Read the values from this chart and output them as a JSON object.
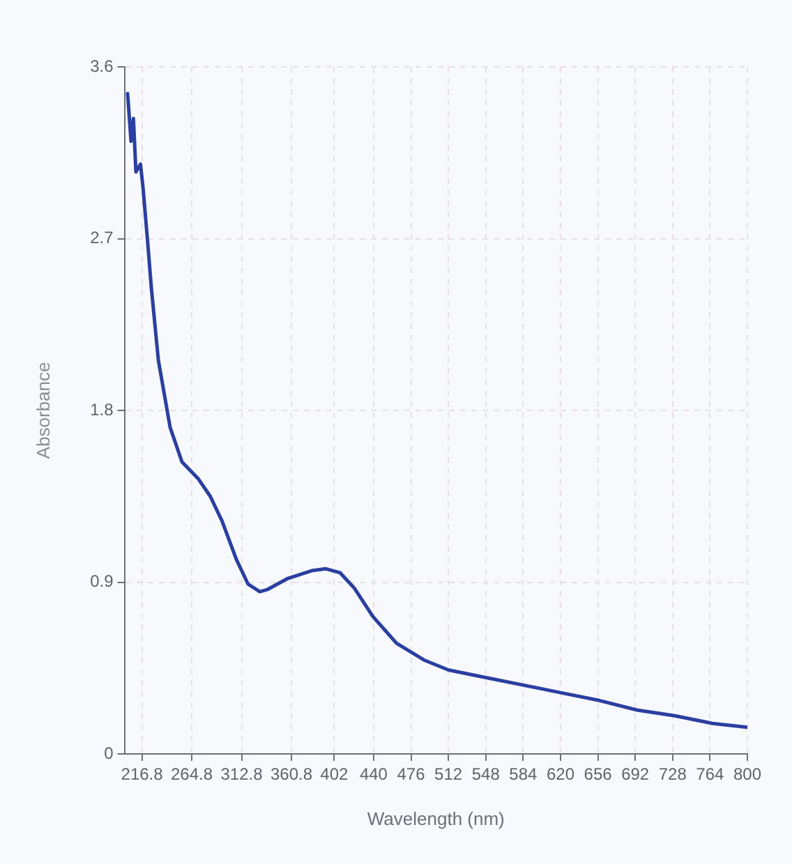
{
  "chart_data": {
    "type": "line",
    "xlabel": "Wavelength (nm)",
    "ylabel": "Absorbance",
    "x": [
      203,
      206.3,
      208.6,
      211,
      215.4,
      217.8,
      222.2,
      225.9,
      232.7,
      244,
      255.4,
      271.3,
      282.6,
      294,
      307.7,
      319,
      330.3,
      337.1,
      357.5,
      380.3,
      394,
      407.5,
      421.2,
      439.3,
      462,
      489.3,
      512,
      548.3,
      584.6,
      621,
      657.3,
      693.6,
      730,
      766.3,
      800
    ],
    "series": [
      {
        "color": "#2b3fa0",
        "values": [
          3.46,
          3.21,
          3.33,
          3.05,
          3.09,
          2.97,
          2.69,
          2.44,
          2.06,
          1.71,
          1.53,
          1.44,
          1.35,
          1.22,
          1.02,
          0.89,
          0.85,
          0.86,
          0.92,
          0.96,
          0.97,
          0.95,
          0.87,
          0.72,
          0.58,
          0.49,
          0.44,
          0.4,
          0.36,
          0.32,
          0.28,
          0.23,
          0.2,
          0.16,
          0.14
        ]
      }
    ],
    "xlim": [
      200,
      800
    ],
    "xticks": [
      216.8,
      264.8,
      312.8,
      360.8,
      402,
      440,
      476,
      512,
      548,
      584,
      620,
      656,
      692,
      728,
      764,
      800
    ],
    "ylim": [
      0,
      3.6
    ],
    "yticks": [
      0,
      0.9,
      1.8,
      2.7,
      3.6
    ],
    "grid": true,
    "legend": false,
    "marker": "none",
    "line_style": "solid"
  }
}
